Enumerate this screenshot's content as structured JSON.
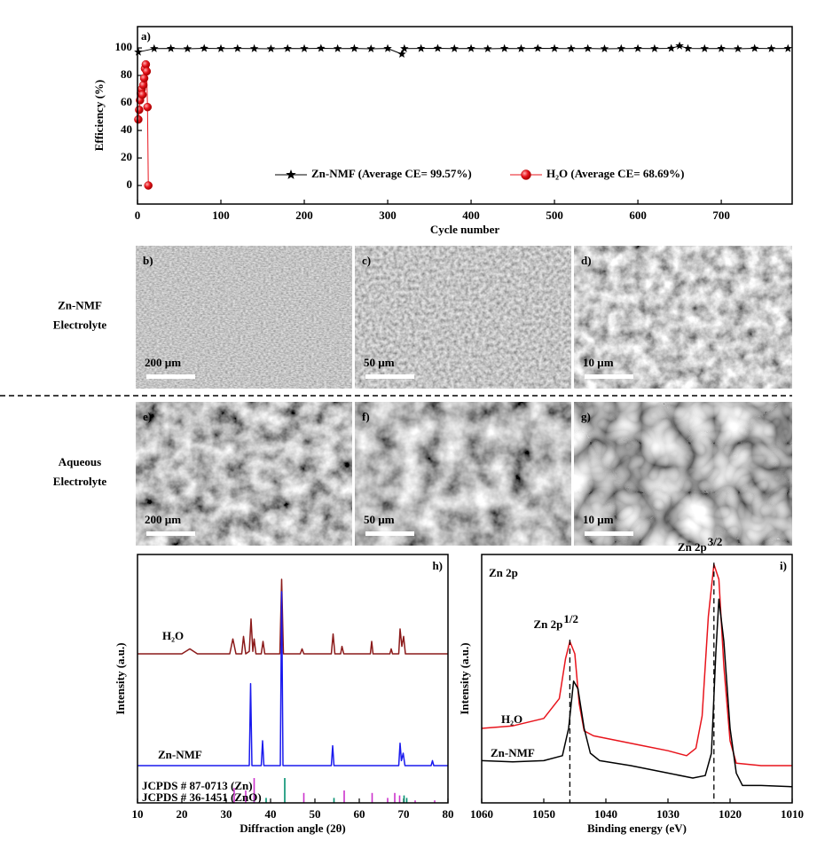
{
  "chart_data": [
    {
      "type": "line",
      "panel_label": "a)",
      "xlabel": "Cycle number",
      "ylabel": "Efficiency (%)",
      "xlim": [
        0,
        785
      ],
      "xticks": [
        0,
        100,
        200,
        300,
        400,
        500,
        600,
        700
      ],
      "ylim": [
        -13.5,
        115.5
      ],
      "yticks": [
        0,
        20,
        40,
        60,
        80,
        100
      ],
      "legend": "bottom",
      "series": [
        {
          "name": "Zn-NMF (Average CE= 99.57%)",
          "color": "#000000",
          "marker": "star",
          "x": [
            1,
            20,
            40,
            60,
            80,
            100,
            120,
            140,
            160,
            180,
            200,
            220,
            240,
            260,
            280,
            300,
            317,
            320,
            340,
            360,
            380,
            400,
            420,
            440,
            460,
            480,
            500,
            520,
            540,
            560,
            580,
            600,
            620,
            640,
            650,
            660,
            680,
            700,
            720,
            740,
            760,
            780
          ],
          "values": [
            97,
            99.5,
            99.6,
            99.4,
            99.7,
            99.5,
            99.6,
            99.5,
            99.4,
            99.6,
            99.5,
            99.7,
            99.5,
            99.6,
            99.4,
            99.6,
            95.5,
            99.5,
            99.6,
            99.7,
            99.5,
            99.6,
            99.4,
            99.6,
            99.5,
            99.7,
            99.6,
            99.5,
            99.6,
            99.4,
            99.5,
            99.6,
            99.5,
            99.7,
            101.5,
            99.6,
            99.5,
            99.6,
            99.4,
            99.7,
            99.5,
            99.6
          ]
        },
        {
          "name": "H₂O (Average CE= 68.69%)",
          "color": "#e8141c",
          "marker": "circle",
          "x": [
            1,
            2,
            3,
            4,
            5,
            6,
            7,
            8,
            9,
            10,
            11,
            12,
            13
          ],
          "values": [
            48,
            55,
            62,
            67,
            70,
            66,
            73,
            78,
            85,
            88,
            83,
            57,
            0
          ]
        }
      ]
    },
    {
      "type": "line",
      "panel_label": "h)",
      "xlabel": "Diffraction angle (2θ)",
      "ylabel": "Intensity (a.u.)",
      "xlim": [
        10,
        80
      ],
      "xticks": [
        10,
        20,
        30,
        40,
        50,
        60,
        70,
        80
      ],
      "ylim": [
        0,
        100
      ],
      "legend": "inline",
      "series": [
        {
          "name": "H₂O",
          "color": "#8b1a1a",
          "x": [
            10,
            20,
            21.8,
            23.5,
            30.8,
            31.5,
            32.2,
            33.5,
            33.9,
            34.4,
            35.2,
            35.6,
            36.0,
            36.3,
            36.7,
            37.9,
            38.3,
            38.7,
            42.1,
            42.5,
            42.9,
            46.7,
            47.1,
            47.5,
            53.7,
            54.1,
            54.5,
            55.8,
            56.1,
            56.5,
            62.5,
            62.8,
            63.1,
            66.9,
            67.2,
            67.5,
            68.9,
            69.2,
            69.6,
            70.0,
            70.4,
            80
          ],
          "values": [
            60,
            60,
            62,
            60,
            60,
            66,
            60,
            60,
            67,
            60,
            61,
            74,
            61,
            66,
            60,
            60,
            65,
            60,
            60,
            90,
            60,
            60,
            62,
            60,
            60,
            68,
            60,
            60,
            63,
            60,
            60,
            65,
            60,
            60,
            62,
            60,
            60,
            70,
            63,
            67,
            60,
            60
          ]
        },
        {
          "name": "Zn-NMF",
          "color": "#1a1aee",
          "x": [
            10,
            35.2,
            35.5,
            35.8,
            37.9,
            38.2,
            38.5,
            42.2,
            42.5,
            42.8,
            53.7,
            54.0,
            54.3,
            68.9,
            69.2,
            69.5,
            69.9,
            70.3,
            76.2,
            76.5,
            76.8,
            80
          ],
          "values": [
            15,
            15,
            48,
            15,
            15,
            25,
            15,
            15,
            85,
            15,
            15,
            23,
            15,
            15,
            24,
            17,
            20,
            15,
            15,
            17,
            15,
            15
          ]
        },
        {
          "name": "JCPDS # 87-0713 (Zn)",
          "color": "#009070",
          "type": "stem",
          "x": [
            36.3,
            39.0,
            43.2,
            54.3,
            70.1,
            70.7
          ],
          "values": [
            4,
            2,
            10,
            2,
            3,
            2
          ]
        },
        {
          "name": "JCPDS # 36-1451 (ZnO)",
          "color": "#cc33cc",
          "type": "stem",
          "x": [
            31.8,
            34.4,
            36.3,
            47.5,
            56.6,
            62.9,
            66.4,
            68.0,
            69.1,
            72.6,
            77.0
          ],
          "values": [
            6,
            5,
            10,
            4,
            5,
            4,
            2,
            4,
            3,
            1,
            1
          ]
        }
      ]
    },
    {
      "type": "line",
      "panel_label": "i)",
      "title": "Zn 2p",
      "xlabel": "Binding energy (eV)",
      "ylabel": "Intensity (a.u.)",
      "xlim": [
        1060,
        1010
      ],
      "xticks": [
        1060,
        1050,
        1040,
        1030,
        1020,
        1010
      ],
      "ylim": [
        0,
        100
      ],
      "legend": "inline",
      "series": [
        {
          "name": "H₂O",
          "color": "#e8141c",
          "x": [
            1060,
            1055,
            1050,
            1047.5,
            1046.5,
            1045.8,
            1045,
            1044.3,
            1043.5,
            1042,
            1038,
            1034,
            1030,
            1027,
            1025.5,
            1024.5,
            1023.5,
            1022.6,
            1021.8,
            1021,
            1020,
            1019,
            1015,
            1010
          ],
          "values": [
            30,
            31,
            34,
            42,
            58,
            65,
            60,
            40,
            29,
            27,
            25,
            23,
            21,
            19,
            22,
            35,
            75,
            96,
            90,
            55,
            25,
            16,
            15,
            15
          ]
        },
        {
          "name": "Zn-NMF",
          "color": "#000000",
          "x": [
            1060,
            1055,
            1050,
            1047,
            1046,
            1045.2,
            1044.5,
            1043.5,
            1042.5,
            1041,
            1036,
            1030,
            1026,
            1024,
            1023,
            1022.3,
            1021.8,
            1021,
            1020,
            1019,
            1018,
            1015,
            1010
          ],
          "values": [
            17,
            16.5,
            17,
            19,
            30,
            49,
            46,
            30,
            20,
            17,
            15,
            12,
            10,
            11,
            20,
            60,
            82,
            65,
            30,
            12,
            7,
            7,
            6.5
          ]
        }
      ],
      "annotations": [
        {
          "text": "Zn 2p",
          "superscript": "1/2",
          "x": 1045.8
        },
        {
          "text": "Zn 2p",
          "superscript": "3/2",
          "x": 1022.6
        }
      ]
    }
  ],
  "sem": {
    "rows": [
      {
        "label": [
          "Zn-NMF",
          "Electrolyte"
        ],
        "panels": [
          {
            "label": "b)",
            "scale_bar": "200 µm"
          },
          {
            "label": "c)",
            "scale_bar": "50 µm"
          },
          {
            "label": "d)",
            "scale_bar": "10 µm"
          }
        ]
      },
      {
        "label": [
          "Aqueous",
          "Electrolyte"
        ],
        "panels": [
          {
            "label": "e)",
            "scale_bar": "200 µm"
          },
          {
            "label": "f)",
            "scale_bar": "50 µm"
          },
          {
            "label": "g)",
            "scale_bar": "10 µm"
          }
        ]
      }
    ]
  }
}
